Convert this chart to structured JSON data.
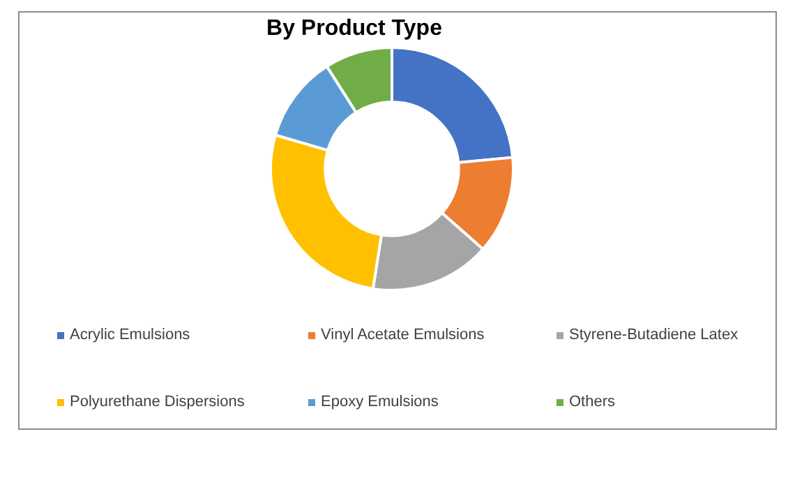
{
  "chart_data": {
    "type": "donut",
    "title": "By Product Type",
    "categories": [
      "Acrylic Emulsions",
      "Vinyl Acetate Emulsions",
      "Styrene-Butadiene Latex",
      "Polyurethane Dispersions",
      "Epoxy Emulsions",
      "Others"
    ],
    "values": [
      23.5,
      13,
      16,
      27,
      11.5,
      9
    ],
    "colors": [
      "#4472c4",
      "#ed7d31",
      "#a5a5a5",
      "#ffc000",
      "#5b9bd5",
      "#70ad47"
    ],
    "legend": "bottom"
  }
}
